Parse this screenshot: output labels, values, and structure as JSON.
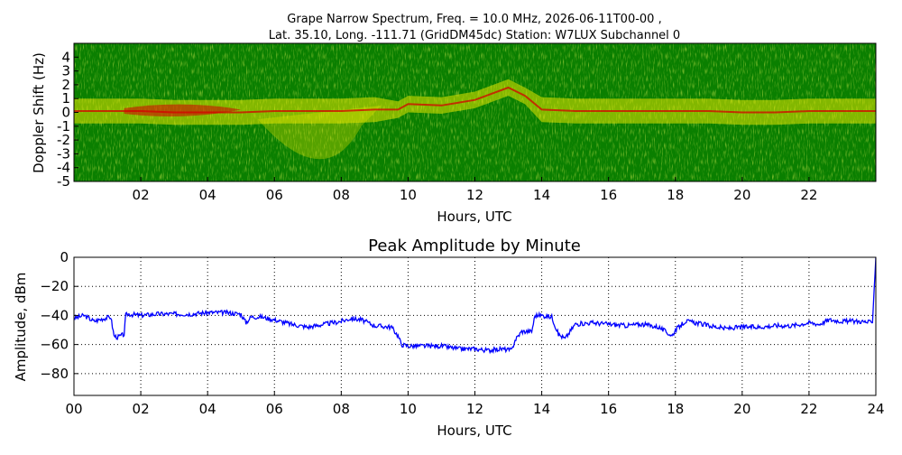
{
  "figure": {
    "title_line1": "Grape Narrow Spectrum, Freq. = 10.0 MHz, 2026-06-11T00-00 ,",
    "title_line2": "Lat.  35.10, Long. -111.71 (GridDM45dc) Station: W7LUX Subchannel 0"
  },
  "colors": {
    "background_green": "#0a7f00",
    "signal_yellow": "#e6e600",
    "peak_red": "#d40000",
    "line_blue": "#0000ff",
    "grid": "#000000"
  },
  "chart_data": [
    {
      "type": "heatmap",
      "xlabel": "Hours, UTC",
      "ylabel": "Doppler Shift (Hz)",
      "xlim": [
        0,
        24
      ],
      "ylim": [
        -5,
        5
      ],
      "xticks": [
        "02",
        "04",
        "06",
        "08",
        "10",
        "12",
        "14",
        "16",
        "18",
        "20",
        "22"
      ],
      "xtick_values": [
        2,
        4,
        6,
        8,
        10,
        12,
        14,
        16,
        18,
        20,
        22
      ],
      "yticks": [
        "4",
        "3",
        "2",
        "1",
        "0",
        "-1",
        "-2",
        "-3",
        "-4",
        "-5"
      ],
      "ytick_values": [
        4,
        3,
        2,
        1,
        0,
        -1,
        -2,
        -3,
        -4,
        -5
      ],
      "center_trace": {
        "hours": [
          0,
          1,
          2,
          3,
          4,
          5,
          6,
          7,
          8,
          9,
          9.7,
          10,
          11,
          12,
          13,
          13.5,
          14,
          15,
          16,
          17,
          18,
          19,
          20,
          21,
          22,
          23,
          24
        ],
        "doppler_hz": [
          0.1,
          0.1,
          0.1,
          0.0,
          0.0,
          0.0,
          0.1,
          0.1,
          0.1,
          0.2,
          0.2,
          0.6,
          0.5,
          0.9,
          1.8,
          1.2,
          0.2,
          0.1,
          0.1,
          0.1,
          0.1,
          0.1,
          0.0,
          0.0,
          0.1,
          0.1,
          0.1
        ]
      }
    },
    {
      "type": "line",
      "title": "Peak Amplitude by Minute",
      "xlabel": "Hours, UTC",
      "ylabel": "Amplitude, dBm",
      "xlim": [
        0,
        24
      ],
      "ylim": [
        -95,
        0
      ],
      "grid": true,
      "xticks": [
        "00",
        "02",
        "04",
        "06",
        "08",
        "10",
        "12",
        "14",
        "16",
        "18",
        "20",
        "22",
        "24"
      ],
      "xtick_values": [
        0,
        2,
        4,
        6,
        8,
        10,
        12,
        14,
        16,
        18,
        20,
        22,
        24
      ],
      "yticks": [
        "0",
        "−20",
        "−40",
        "−60",
        "−80"
      ],
      "ytick_values": [
        0,
        -20,
        -40,
        -60,
        -80
      ],
      "series": [
        {
          "x": [
            0.0,
            0.3,
            0.6,
            0.9,
            1.1,
            1.2,
            1.3,
            1.5,
            1.55,
            1.6,
            2.0,
            2.5,
            3.0,
            3.5,
            4.0,
            4.5,
            5.0,
            5.15,
            5.3,
            5.6,
            6.0,
            6.5,
            7.0,
            7.5,
            8.0,
            8.3,
            8.6,
            9.0,
            9.5,
            9.7,
            9.8,
            10.0,
            10.5,
            11.0,
            11.5,
            12.0,
            12.4,
            12.8,
            13.1,
            13.2,
            13.4,
            13.7,
            13.8,
            14.0,
            14.3,
            14.5,
            14.7,
            15.0,
            15.5,
            16.0,
            16.5,
            17.0,
            17.5,
            17.9,
            18.0,
            18.3,
            18.6,
            19.0,
            19.5,
            20.0,
            20.5,
            21.0,
            21.5,
            22.0,
            22.3,
            22.6,
            23.0,
            23.5,
            23.9,
            24.0
          ],
          "y": [
            -42,
            -40,
            -44,
            -42,
            -41,
            -54,
            -55,
            -53,
            -40,
            -39,
            -40,
            -39,
            -39,
            -39,
            -38,
            -38,
            -39,
            -45,
            -41,
            -41,
            -43,
            -46,
            -48,
            -46,
            -44,
            -42,
            -43,
            -47,
            -48,
            -54,
            -60,
            -61,
            -61,
            -61,
            -63,
            -63,
            -64,
            -63,
            -64,
            -57,
            -51,
            -51,
            -40,
            -40,
            -41,
            -53,
            -56,
            -46,
            -45,
            -46,
            -47,
            -46,
            -48,
            -54,
            -50,
            -44,
            -45,
            -47,
            -49,
            -48,
            -48,
            -47,
            -47,
            -45,
            -46,
            -43,
            -44,
            -44,
            -45,
            0
          ]
        }
      ]
    }
  ]
}
